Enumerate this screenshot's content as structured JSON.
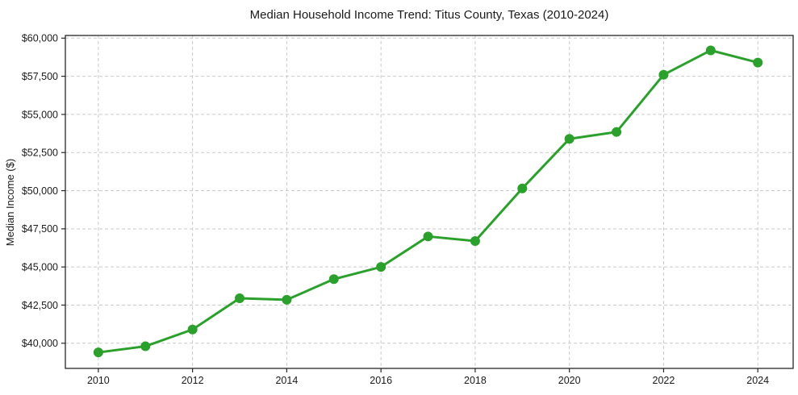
{
  "chart_data": {
    "type": "line",
    "title": "Median Household Income Trend: Titus County, Texas (2010-2024)",
    "xlabel": "",
    "ylabel": "Median Income ($)",
    "x": [
      2010,
      2011,
      2012,
      2013,
      2014,
      2015,
      2016,
      2017,
      2018,
      2019,
      2020,
      2021,
      2022,
      2023,
      2024
    ],
    "series": [
      {
        "name": "Median Household Income",
        "values": [
          39400,
          39800,
          40900,
          42950,
          42850,
          44200,
          45000,
          47000,
          46700,
          50150,
          53400,
          53850,
          57600,
          59200,
          58400
        ]
      }
    ],
    "x_ticks": [
      2010,
      2012,
      2014,
      2016,
      2018,
      2020,
      2022,
      2024
    ],
    "x_tick_labels": [
      "2010",
      "2012",
      "2014",
      "2016",
      "2018",
      "2020",
      "2022",
      "2024"
    ],
    "y_ticks": [
      40000,
      42500,
      45000,
      47500,
      50000,
      52500,
      55000,
      57500,
      60000
    ],
    "y_tick_labels": [
      "$40,000",
      "$42,500",
      "$45,000",
      "$47,500",
      "$50,000",
      "$52,500",
      "$55,000",
      "$57,500",
      "$60,000"
    ],
    "xlim": [
      2009.3,
      2024.75
    ],
    "ylim": [
      38350,
      60175
    ],
    "grid": true,
    "grid_style": "dashed",
    "legend": "none",
    "marker": "circle",
    "line_width": 3,
    "marker_size": 6
  },
  "colors": {
    "line": "#2ca02c",
    "grid": "#c9c9c9",
    "spine": "#262626",
    "text": "#1a1a1a",
    "background": "#ffffff"
  }
}
